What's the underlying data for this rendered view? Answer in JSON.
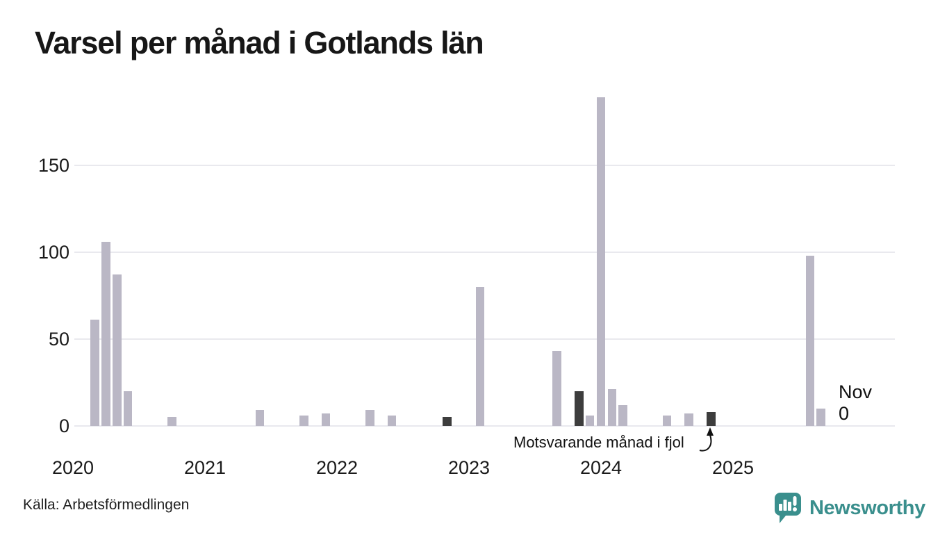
{
  "title": "Varsel per månad i Gotlands län",
  "source": "Källa: Arbetsförmedlingen",
  "branding": {
    "name": "Newsworthy",
    "color": "#3a8f8d",
    "icon": "speech-bubble-bar-chart-icon"
  },
  "annotation": {
    "text": "Motsvarande månad i fjol",
    "points_to": "2024-11"
  },
  "latest_label": {
    "line1": "Nov",
    "line2": "0"
  },
  "colors": {
    "bar": "#bab7c5",
    "bar_highlight": "#3d3d3d",
    "gridline": "#e9e9ee",
    "text": "#1a1a1a",
    "background": "#ffffff"
  },
  "chart_data": {
    "type": "bar",
    "title": "Varsel per månad i Gotlands län",
    "x_start": "2020-01",
    "x_end": "2025-11",
    "ylim": [
      0,
      195
    ],
    "yticks": [
      0,
      50,
      100,
      150
    ],
    "xticks": [
      "2020",
      "2021",
      "2022",
      "2023",
      "2024",
      "2025"
    ],
    "grid": "horizontal",
    "legend": "none",
    "values_by_year": {
      "2020": [
        0,
        0,
        61,
        106,
        87,
        20,
        0,
        0,
        0,
        5,
        0,
        0
      ],
      "2021": [
        0,
        0,
        0,
        0,
        0,
        9,
        0,
        0,
        0,
        6,
        0,
        7
      ],
      "2022": [
        0,
        0,
        0,
        9,
        0,
        6,
        0,
        0,
        0,
        0,
        5,
        0
      ],
      "2023": [
        0,
        80,
        0,
        0,
        0,
        0,
        0,
        0,
        43,
        0,
        20,
        6
      ],
      "2024": [
        189,
        21,
        12,
        0,
        0,
        0,
        6,
        0,
        7,
        0,
        8,
        0
      ],
      "2025": [
        0,
        0,
        0,
        0,
        0,
        0,
        0,
        98,
        10,
        0,
        0
      ]
    },
    "highlighted_months": [
      "2022-11",
      "2023-11",
      "2024-11"
    ],
    "latest": {
      "month": "2025-11",
      "value": 0
    }
  }
}
